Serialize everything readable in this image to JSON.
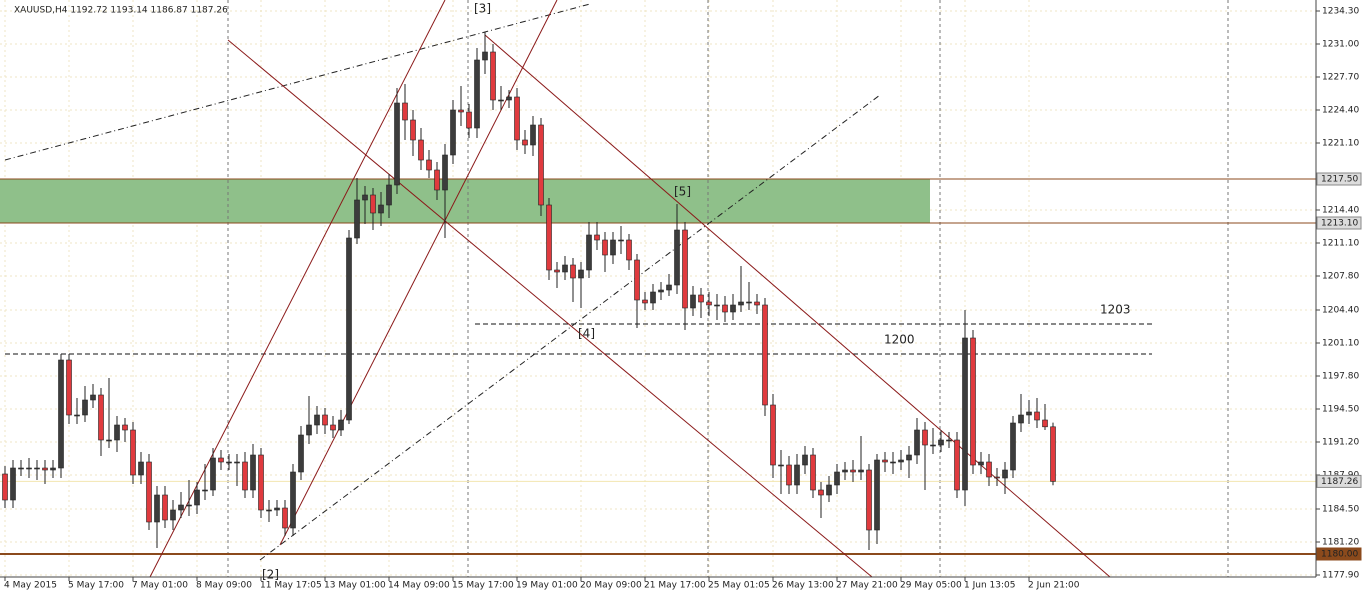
{
  "chart_data": {
    "type": "candlestick",
    "title": "XAUUSD,H4  1192.72 1193.14 1186.87 1187.26",
    "up_color": "#3c3c3c",
    "down_color": "#e03a3e",
    "grid": true,
    "ylim": [
      1177.7,
      1235.4
    ],
    "yticks": [
      {
        "value": 1234.3,
        "label": "1234.30"
      },
      {
        "value": 1231,
        "label": "1231.00"
      },
      {
        "value": 1227.7,
        "label": "1227.70"
      },
      {
        "value": 1224.4,
        "label": "1224.40"
      },
      {
        "value": 1221.1,
        "label": "1221.10"
      },
      {
        "value": 1214.4,
        "label": "1214.40"
      },
      {
        "value": 1211.1,
        "label": "1211.10"
      },
      {
        "value": 1207.8,
        "label": "1207.80"
      },
      {
        "value": 1204.4,
        "label": "1204.40"
      },
      {
        "value": 1201.1,
        "label": "1201.10"
      },
      {
        "value": 1197.8,
        "label": "1197.80"
      },
      {
        "value": 1194.5,
        "label": "1194.50"
      },
      {
        "value": 1191.2,
        "label": "1191.20"
      },
      {
        "value": 1187.9,
        "label": "1187.90"
      },
      {
        "value": 1184.5,
        "label": "1184.50"
      },
      {
        "value": 1181.2,
        "label": "1181.20"
      },
      {
        "value": 1177.9,
        "label": "1177.90"
      }
    ],
    "levels": [
      {
        "value": 1217.5,
        "label": "1217.50",
        "color": "#8b4a1c"
      },
      {
        "value": 1213.1,
        "label": "1213.10",
        "color": "#8b4a1c"
      },
      {
        "value": 1180,
        "label": "1180.00",
        "color": "#8b4a1c"
      },
      {
        "value": 1187.26,
        "label": "1187.26",
        "color": "#f2e6b0"
      }
    ],
    "zone_color": "#8fc08a",
    "hlines": [
      {
        "value": 1203
      },
      {
        "value": 1200
      }
    ],
    "annotations": [
      "[2]",
      "[3]",
      "[4]",
      "[5]"
    ],
    "categories": [
      "4 May 2015",
      null,
      null,
      null,
      null,
      null,
      null,
      null,
      "5 May 17:00",
      null,
      null,
      null,
      null,
      null,
      null,
      null,
      "7 May 01:00",
      null,
      null,
      null,
      null,
      null,
      null,
      null,
      "8 May 09:00",
      null,
      null,
      null,
      null,
      null,
      null,
      null,
      "11 May 17:05",
      null,
      null,
      null,
      null,
      null,
      null,
      null,
      "13 May 01:00",
      null,
      null,
      null,
      null,
      null,
      null,
      null,
      "14 May 09:00",
      null,
      null,
      null,
      null,
      null,
      null,
      null,
      "15 May 17:00",
      null,
      null,
      null,
      null,
      null,
      null,
      null,
      "19 May 01:00",
      null,
      null,
      null,
      null,
      null,
      null,
      null,
      "20 May 09:00",
      null,
      null,
      null,
      null,
      null,
      null,
      null,
      "21 May 17:00",
      null,
      null,
      null,
      null,
      null,
      null,
      null,
      "25 May 01:05",
      null,
      null,
      null,
      null,
      null,
      null,
      null,
      "26 May 13:00",
      null,
      null,
      null,
      null,
      null,
      null,
      null,
      "27 May 21:00",
      null,
      null,
      null,
      null,
      null,
      null,
      null,
      "29 May 05:00",
      null,
      null,
      null,
      null,
      null,
      null,
      null,
      "1 Jun 13:05",
      null,
      null,
      null,
      null,
      null,
      null,
      null,
      "2 Jun 21:00",
      null,
      null,
      null
    ],
    "candles": [
      [
        1188.0,
        1188.8,
        1184.6,
        1185.4
      ],
      [
        1185.4,
        1189.4,
        1184.6,
        1188.6
      ],
      [
        1188.6,
        1189.4,
        1187.8,
        1188.6
      ],
      [
        1188.6,
        1189.6,
        1187.6,
        1188.6
      ],
      [
        1188.6,
        1189.4,
        1187.4,
        1188.6
      ],
      [
        1188.6,
        1189.4,
        1187.0,
        1188.4
      ],
      [
        1188.4,
        1189.4,
        1187.6,
        1188.6
      ],
      [
        1188.6,
        1200.0,
        1187.6,
        1199.4
      ],
      [
        1199.4,
        1200.0,
        1193.0,
        1193.9
      ],
      [
        1193.9,
        1195.6,
        1193.0,
        1193.9
      ],
      [
        1193.9,
        1196.8,
        1193.2,
        1195.4
      ],
      [
        1195.4,
        1197.0,
        1194.6,
        1195.9
      ],
      [
        1195.9,
        1196.6,
        1189.8,
        1191.4
      ],
      [
        1191.4,
        1197.6,
        1190.6,
        1191.4
      ],
      [
        1191.4,
        1193.8,
        1190.2,
        1192.9
      ],
      [
        1192.9,
        1193.6,
        1191.2,
        1192.4
      ],
      [
        1192.4,
        1193.2,
        1187.0,
        1187.9
      ],
      [
        1187.9,
        1190.2,
        1187.0,
        1189.2
      ],
      [
        1189.2,
        1190.0,
        1182.4,
        1183.2
      ],
      [
        1183.2,
        1186.8,
        1180.6,
        1185.9
      ],
      [
        1185.9,
        1186.8,
        1182.6,
        1183.4
      ],
      [
        1183.4,
        1185.4,
        1182.4,
        1184.4
      ],
      [
        1184.4,
        1186.2,
        1183.6,
        1184.9
      ],
      [
        1184.9,
        1187.4,
        1183.8,
        1184.9
      ],
      [
        1184.9,
        1187.2,
        1184.0,
        1186.4
      ],
      [
        1186.4,
        1189.0,
        1185.4,
        1186.4
      ],
      [
        1186.4,
        1190.6,
        1185.8,
        1189.6
      ],
      [
        1189.6,
        1190.4,
        1188.4,
        1189.2
      ],
      [
        1189.2,
        1190.0,
        1188.4,
        1189.2
      ],
      [
        1189.2,
        1190.0,
        1186.8,
        1189.2
      ],
      [
        1189.2,
        1190.2,
        1185.6,
        1186.4
      ],
      [
        1186.4,
        1191.0,
        1185.6,
        1189.9
      ],
      [
        1189.9,
        1190.6,
        1183.6,
        1184.4
      ],
      [
        1184.4,
        1185.4,
        1183.2,
        1184.4
      ],
      [
        1184.4,
        1185.4,
        1183.8,
        1184.6
      ],
      [
        1184.6,
        1185.4,
        1181.8,
        1182.6
      ],
      [
        1182.6,
        1189.0,
        1181.8,
        1188.2
      ],
      [
        1188.2,
        1192.8,
        1187.4,
        1191.9
      ],
      [
        1191.9,
        1195.8,
        1191.0,
        1192.9
      ],
      [
        1192.9,
        1194.8,
        1192.0,
        1193.9
      ],
      [
        1193.9,
        1194.6,
        1192.0,
        1192.9
      ],
      [
        1192.9,
        1193.8,
        1191.6,
        1192.4
      ],
      [
        1192.4,
        1194.4,
        1191.8,
        1193.4
      ],
      [
        1193.4,
        1212.4,
        1193.0,
        1211.6
      ],
      [
        1211.6,
        1217.6,
        1211.0,
        1215.4
      ],
      [
        1215.4,
        1216.8,
        1213.0,
        1215.9
      ],
      [
        1215.9,
        1216.6,
        1212.4,
        1214.1
      ],
      [
        1214.1,
        1216.2,
        1212.8,
        1214.9
      ],
      [
        1214.9,
        1218.0,
        1213.6,
        1216.9
      ],
      [
        1216.9,
        1226.6,
        1216.0,
        1225.1
      ],
      [
        1225.1,
        1227.0,
        1221.4,
        1223.4
      ],
      [
        1223.4,
        1224.4,
        1219.8,
        1221.4
      ],
      [
        1221.4,
        1222.6,
        1218.4,
        1219.4
      ],
      [
        1219.4,
        1220.4,
        1217.6,
        1218.4
      ],
      [
        1218.4,
        1219.2,
        1215.4,
        1216.4
      ],
      [
        1216.4,
        1221.0,
        1211.6,
        1219.9
      ],
      [
        1219.9,
        1225.4,
        1219.0,
        1224.4
      ],
      [
        1224.4,
        1226.8,
        1222.8,
        1224.2
      ],
      [
        1224.2,
        1225.0,
        1221.6,
        1222.6
      ],
      [
        1222.6,
        1230.6,
        1221.6,
        1229.4
      ],
      [
        1229.4,
        1232.2,
        1228.0,
        1230.2
      ],
      [
        1230.2,
        1231.0,
        1224.4,
        1225.4
      ],
      [
        1225.4,
        1226.8,
        1224.4,
        1225.4
      ],
      [
        1225.4,
        1226.4,
        1224.6,
        1225.7
      ],
      [
        1225.7,
        1226.6,
        1220.4,
        1221.4
      ],
      [
        1221.4,
        1222.4,
        1220.0,
        1220.9
      ],
      [
        1220.9,
        1223.8,
        1219.8,
        1222.9
      ],
      [
        1222.9,
        1223.6,
        1213.8,
        1214.9
      ],
      [
        1214.9,
        1215.6,
        1207.4,
        1208.4
      ],
      [
        1208.4,
        1209.2,
        1206.6,
        1208.2
      ],
      [
        1208.2,
        1209.8,
        1207.4,
        1208.9
      ],
      [
        1208.9,
        1209.6,
        1205.2,
        1207.6
      ],
      [
        1207.6,
        1209.2,
        1204.6,
        1208.4
      ],
      [
        1208.4,
        1213.2,
        1207.6,
        1211.9
      ],
      [
        1211.9,
        1213.2,
        1210.4,
        1211.4
      ],
      [
        1211.4,
        1212.2,
        1208.2,
        1209.9
      ],
      [
        1209.9,
        1212.2,
        1209.0,
        1211.4
      ],
      [
        1211.4,
        1212.8,
        1210.0,
        1211.4
      ],
      [
        1211.4,
        1212.0,
        1208.4,
        1209.4
      ],
      [
        1209.4,
        1210.0,
        1202.6,
        1205.4
      ],
      [
        1205.4,
        1206.2,
        1204.4,
        1205.1
      ],
      [
        1205.1,
        1207.0,
        1204.4,
        1206.2
      ],
      [
        1206.2,
        1207.2,
        1205.4,
        1206.4
      ],
      [
        1206.4,
        1208.0,
        1205.8,
        1206.9
      ],
      [
        1206.9,
        1215.0,
        1206.0,
        1212.4
      ],
      [
        1212.4,
        1213.2,
        1202.4,
        1204.6
      ],
      [
        1204.6,
        1206.8,
        1203.8,
        1205.9
      ],
      [
        1205.9,
        1206.6,
        1203.6,
        1205.2
      ],
      [
        1205.2,
        1206.2,
        1203.8,
        1204.9
      ],
      [
        1204.9,
        1206.0,
        1203.4,
        1204.9
      ],
      [
        1204.9,
        1205.8,
        1203.2,
        1204.2
      ],
      [
        1204.2,
        1206.0,
        1203.4,
        1204.9
      ],
      [
        1204.9,
        1208.8,
        1204.2,
        1205.2
      ],
      [
        1205.2,
        1207.2,
        1204.4,
        1205.2
      ],
      [
        1205.2,
        1206.0,
        1204.0,
        1204.9
      ],
      [
        1204.9,
        1205.6,
        1193.8,
        1194.9
      ],
      [
        1194.9,
        1196.0,
        1187.6,
        1188.9
      ],
      [
        1188.9,
        1190.4,
        1186.0,
        1188.9
      ],
      [
        1188.9,
        1189.8,
        1186.0,
        1186.9
      ],
      [
        1186.9,
        1190.0,
        1186.0,
        1188.9
      ],
      [
        1188.9,
        1190.8,
        1188.0,
        1189.9
      ],
      [
        1189.9,
        1190.6,
        1185.6,
        1186.4
      ],
      [
        1186.4,
        1187.2,
        1183.6,
        1185.9
      ],
      [
        1185.9,
        1187.8,
        1185.2,
        1186.9
      ],
      [
        1186.9,
        1189.0,
        1186.0,
        1188.2
      ],
      [
        1188.2,
        1189.2,
        1187.4,
        1188.4
      ],
      [
        1188.4,
        1189.4,
        1187.2,
        1188.2
      ],
      [
        1188.2,
        1191.8,
        1187.4,
        1188.4
      ],
      [
        1188.4,
        1189.0,
        1180.4,
        1182.4
      ],
      [
        1182.4,
        1190.0,
        1181.0,
        1189.4
      ],
      [
        1189.4,
        1190.2,
        1188.2,
        1189.2
      ],
      [
        1189.2,
        1190.2,
        1188.0,
        1189.2
      ],
      [
        1189.2,
        1190.4,
        1188.4,
        1189.4
      ],
      [
        1189.4,
        1190.8,
        1187.6,
        1189.9
      ],
      [
        1189.9,
        1193.6,
        1189.0,
        1192.4
      ],
      [
        1192.4,
        1193.2,
        1186.4,
        1190.9
      ],
      [
        1190.9,
        1192.6,
        1190.0,
        1190.9
      ],
      [
        1190.9,
        1192.4,
        1190.2,
        1191.4
      ],
      [
        1191.4,
        1192.2,
        1190.6,
        1191.4
      ],
      [
        1191.4,
        1192.2,
        1185.6,
        1186.4
      ],
      [
        1186.4,
        1204.4,
        1184.8,
        1201.6
      ],
      [
        1201.6,
        1202.4,
        1188.0,
        1188.9
      ],
      [
        1188.9,
        1190.2,
        1188.0,
        1189.2
      ],
      [
        1189.2,
        1190.0,
        1186.8,
        1187.7
      ],
      [
        1187.7,
        1188.6,
        1186.8,
        1187.6
      ],
      [
        1187.6,
        1189.2,
        1186.0,
        1188.4
      ],
      [
        1188.4,
        1193.8,
        1187.6,
        1193.1
      ],
      [
        1193.1,
        1196.0,
        1192.2,
        1193.9
      ],
      [
        1193.9,
        1195.4,
        1193.0,
        1194.2
      ],
      [
        1194.2,
        1195.6,
        1192.6,
        1193.4
      ],
      [
        1193.4,
        1195.0,
        1192.4,
        1192.72
      ],
      [
        1192.72,
        1193.14,
        1186.87,
        1187.26
      ]
    ]
  }
}
